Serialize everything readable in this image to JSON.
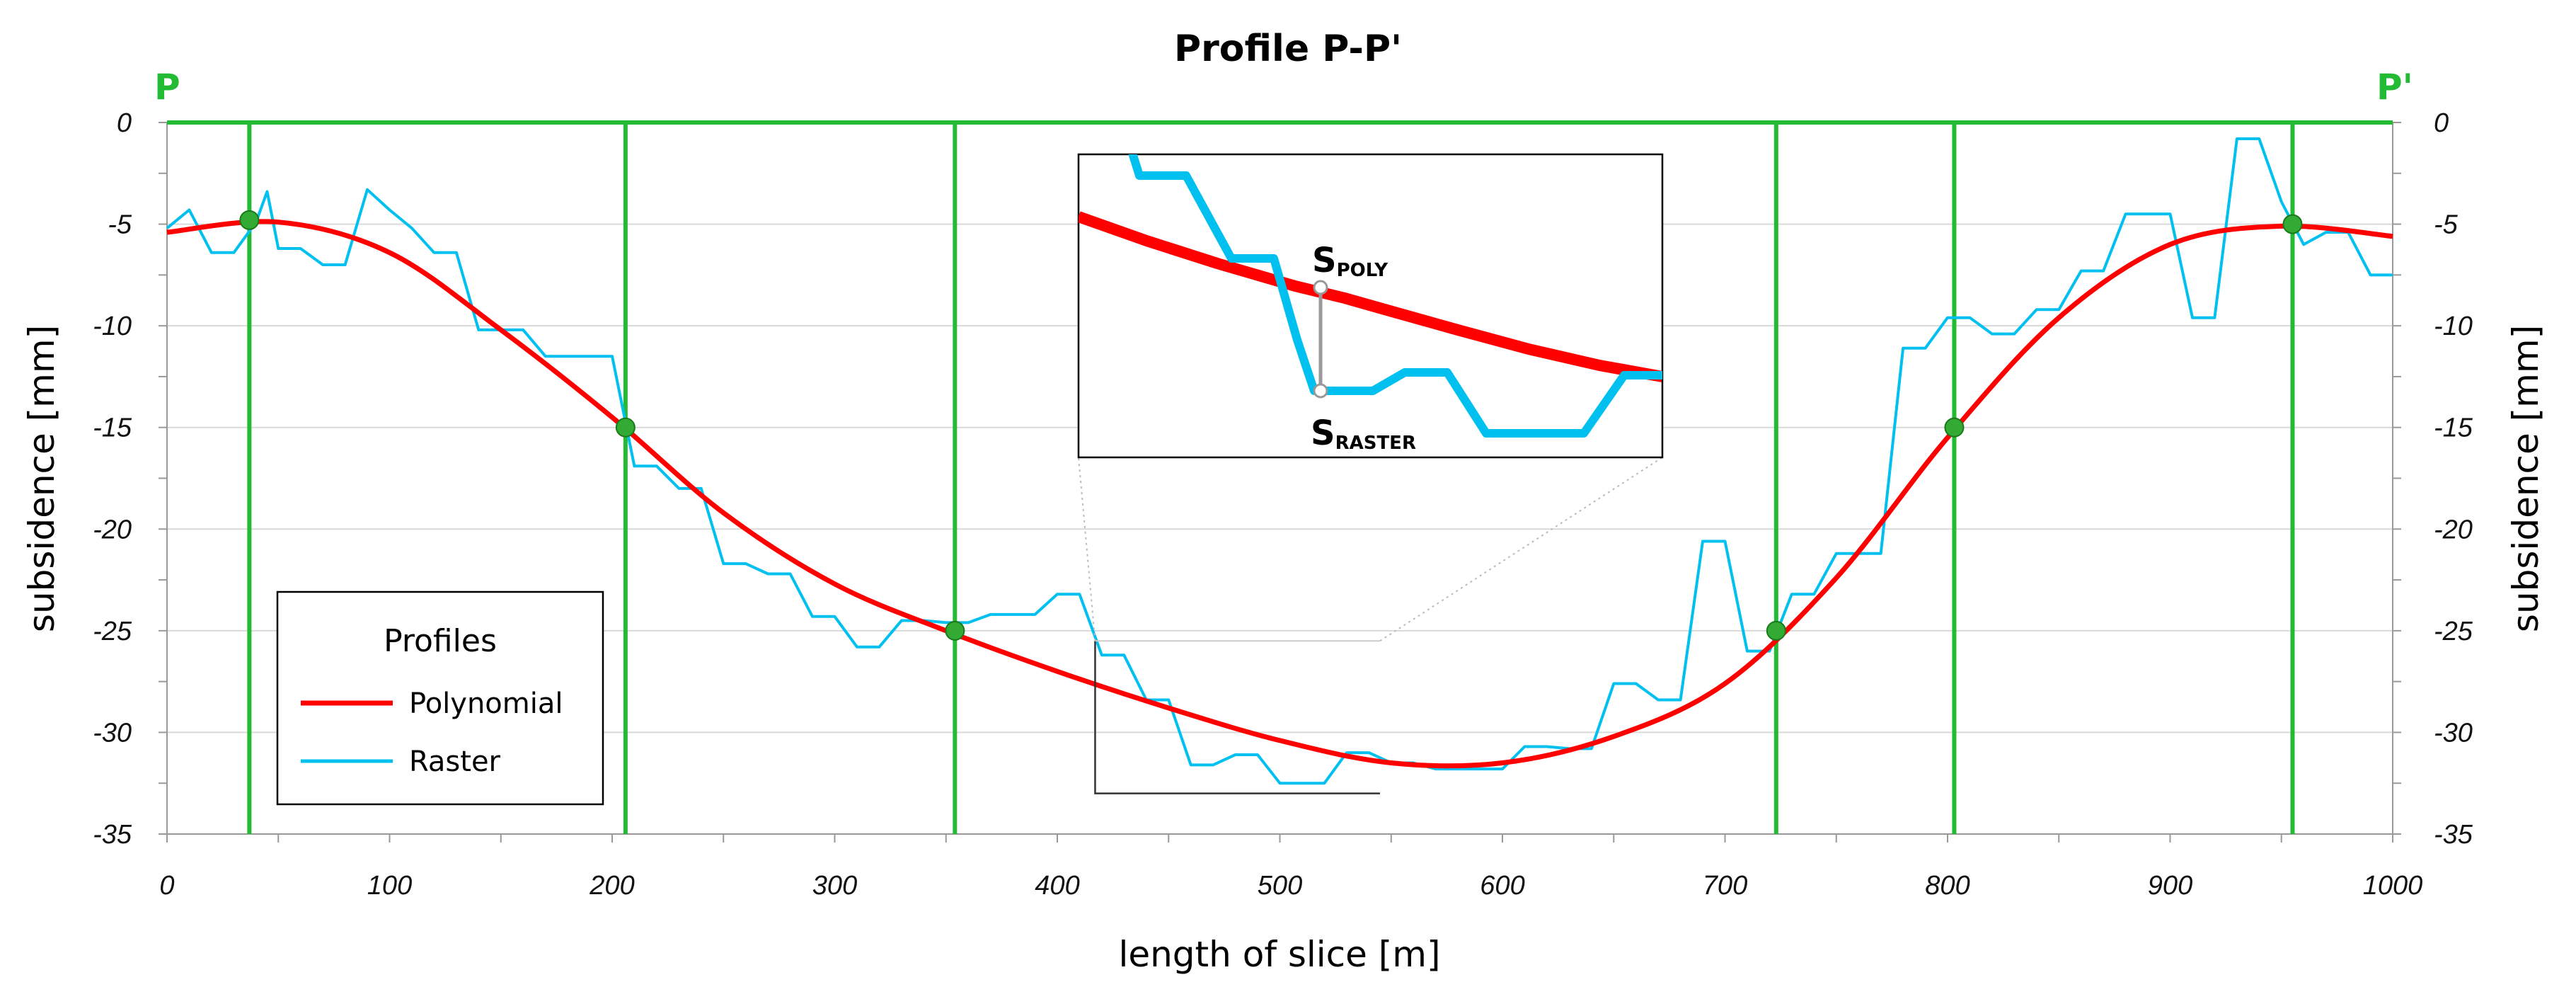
{
  "chart_data": {
    "type": "line",
    "title": "Profile P-P'",
    "start_label": "P",
    "end_label": "P'",
    "xlabel": "length of slice [m]",
    "ylabel": "subsidence [mm]",
    "ylabel_right": "subsidence [mm]",
    "xlim": [
      0,
      1000
    ],
    "ylim": [
      -35,
      0
    ],
    "x_ticks": [
      "0",
      "100",
      "200",
      "300",
      "400",
      "500",
      "600",
      "700",
      "800",
      "900",
      "1000"
    ],
    "y_ticks": [
      "0",
      "-5",
      "-10",
      "-15",
      "-20",
      "-25",
      "-30",
      "-35"
    ],
    "grid": true,
    "legend": {
      "title": "Profiles",
      "position": "bottom-left",
      "entries": [
        "Polynomial",
        "Raster"
      ]
    },
    "colors": {
      "polynomial": "#ff0000",
      "raster": "#00c0f0",
      "verticals": "#22bb33",
      "markers": "#33aa33",
      "grid": "#d9d9d9"
    },
    "series": [
      {
        "name": "Polynomial",
        "x": [
          0,
          50,
          100,
          150,
          200,
          250,
          300,
          350,
          400,
          450,
          500,
          550,
          600,
          650,
          700,
          750,
          800,
          850,
          900,
          950,
          1000
        ],
        "values": [
          -5.4,
          -4.9,
          -6.4,
          -10.2,
          -14.5,
          -19.2,
          -22.7,
          -25.0,
          -27.0,
          -28.8,
          -30.4,
          -31.5,
          -31.5,
          -30.2,
          -27.6,
          -22.4,
          -15.5,
          -9.6,
          -6.0,
          -5.1,
          -5.6
        ]
      },
      {
        "name": "Raster",
        "x": [
          0,
          10,
          20,
          30,
          40,
          45,
          50,
          60,
          70,
          80,
          90,
          100,
          110,
          120,
          130,
          140,
          150,
          160,
          170,
          180,
          200,
          210,
          220,
          230,
          240,
          250,
          260,
          270,
          280,
          290,
          300,
          310,
          320,
          330,
          340,
          350,
          360,
          370,
          380,
          390,
          400,
          410,
          420,
          430,
          440,
          450,
          460,
          470,
          480,
          490,
          500,
          510,
          520,
          530,
          540,
          550,
          560,
          570,
          580,
          600,
          610,
          620,
          630,
          640,
          650,
          660,
          670,
          680,
          690,
          700,
          710,
          720,
          730,
          740,
          750,
          760,
          770,
          780,
          790,
          800,
          810,
          820,
          830,
          840,
          850,
          860,
          870,
          880,
          890,
          900,
          910,
          920,
          930,
          940,
          950,
          960,
          970,
          980,
          990,
          1000
        ],
        "values": [
          -5.2,
          -4.3,
          -6.4,
          -6.4,
          -4.9,
          -3.4,
          -6.2,
          -6.2,
          -7.0,
          -7.0,
          -3.3,
          -4.3,
          -5.2,
          -6.4,
          -6.4,
          -10.2,
          -10.2,
          -10.2,
          -11.5,
          -11.5,
          -11.5,
          -16.9,
          -16.9,
          -18.0,
          -18.0,
          -21.7,
          -21.7,
          -22.2,
          -22.2,
          -24.3,
          -24.3,
          -25.8,
          -25.8,
          -24.5,
          -24.5,
          -24.6,
          -24.6,
          -24.2,
          -24.2,
          -24.2,
          -23.2,
          -23.2,
          -26.2,
          -26.2,
          -28.4,
          -28.4,
          -31.6,
          -31.6,
          -31.1,
          -31.1,
          -32.5,
          -32.5,
          -32.5,
          -31.0,
          -31.0,
          -31.5,
          -31.5,
          -31.8,
          -31.8,
          -31.8,
          -30.7,
          -30.7,
          -30.8,
          -30.8,
          -27.6,
          -27.6,
          -28.4,
          -28.4,
          -20.6,
          -20.6,
          -26.0,
          -26.0,
          -23.2,
          -23.2,
          -21.2,
          -21.2,
          -21.2,
          -11.1,
          -11.1,
          -9.6,
          -9.6,
          -10.4,
          -10.4,
          -9.2,
          -9.2,
          -7.3,
          -7.3,
          -4.5,
          -4.5,
          -4.5,
          -9.6,
          -9.6,
          -0.8,
          -0.8,
          -3.9,
          -6.0,
          -5.4,
          -5.4,
          -7.5,
          -7.5
        ]
      }
    ],
    "vertical_lines_x": [
      37,
      206,
      354,
      723,
      803,
      955
    ],
    "intersection_points": [
      {
        "x": 37,
        "y": -4.8
      },
      {
        "x": 206,
        "y": -15.0
      },
      {
        "x": 354,
        "y": -25.0
      },
      {
        "x": 723,
        "y": -25.0
      },
      {
        "x": 803,
        "y": -15.0
      },
      {
        "x": 955,
        "y": -5.0
      }
    ],
    "inset": {
      "label_poly": "S",
      "label_poly_sub": "POLY",
      "label_raster": "S",
      "label_raster_sub": "RASTER",
      "source_region_x": [
        417,
        545
      ],
      "source_region_y": [
        -33,
        -25.5
      ]
    }
  }
}
